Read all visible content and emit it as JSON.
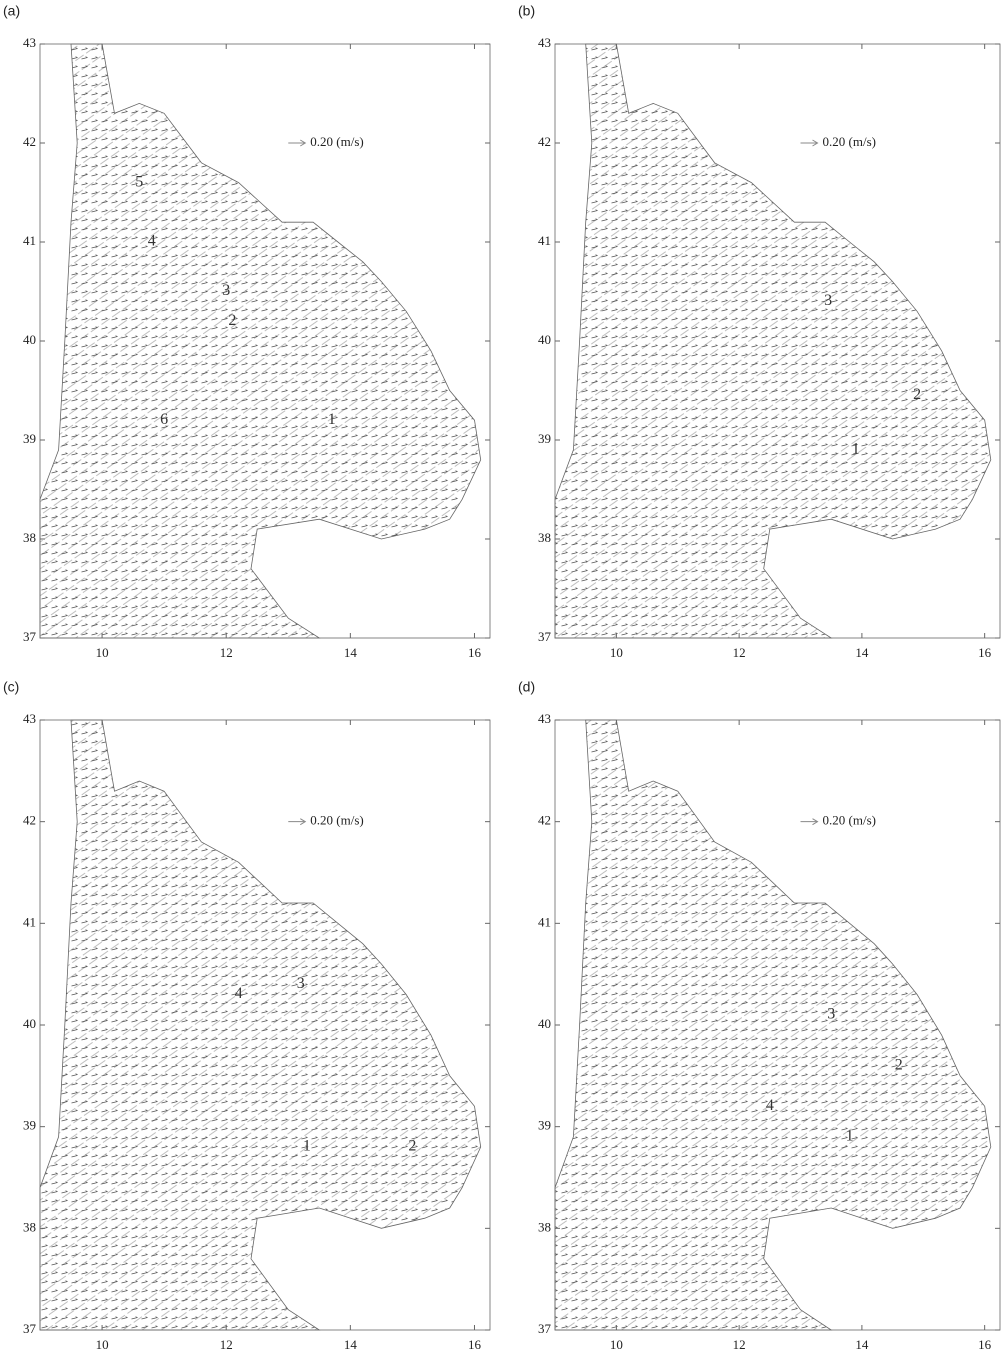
{
  "chart_data": [
    {
      "type": "quiver",
      "title": "(a)",
      "reference_label": "0.20 (m/s)",
      "xlim": [
        9,
        16.25
      ],
      "ylim": [
        37,
        43
      ],
      "xticks": [
        10,
        12,
        14,
        16
      ],
      "yticks": [
        37,
        38,
        39,
        40,
        41,
        42,
        43
      ],
      "annotations": [
        "5",
        "4",
        "3",
        "2",
        "6",
        "1"
      ]
    },
    {
      "type": "quiver",
      "title": "(b)",
      "reference_label": "0.20 (m/s)",
      "xlim": [
        9,
        16.25
      ],
      "ylim": [
        37,
        43
      ],
      "xticks": [
        10,
        12,
        14,
        16
      ],
      "yticks": [
        37,
        38,
        39,
        40,
        41,
        42,
        43
      ],
      "annotations": [
        "3",
        "2",
        "1"
      ]
    },
    {
      "type": "quiver",
      "title": "(c)",
      "reference_label": "0.20 (m/s)",
      "xlim": [
        9,
        16.25
      ],
      "ylim": [
        37,
        43
      ],
      "xticks": [
        10,
        12,
        14,
        16
      ],
      "yticks": [
        37,
        38,
        39,
        40,
        41,
        42,
        43
      ],
      "annotations": [
        "4",
        "3",
        "1",
        "2"
      ]
    },
    {
      "type": "quiver",
      "title": "(d)",
      "reference_label": "0.20 (m/s)",
      "xlim": [
        9,
        16.25
      ],
      "ylim": [
        37,
        43
      ],
      "xticks": [
        10,
        12,
        14,
        16
      ],
      "yticks": [
        37,
        38,
        39,
        40,
        41,
        42,
        43
      ],
      "annotations": [
        "3",
        "2",
        "4",
        "1"
      ]
    }
  ]
}
